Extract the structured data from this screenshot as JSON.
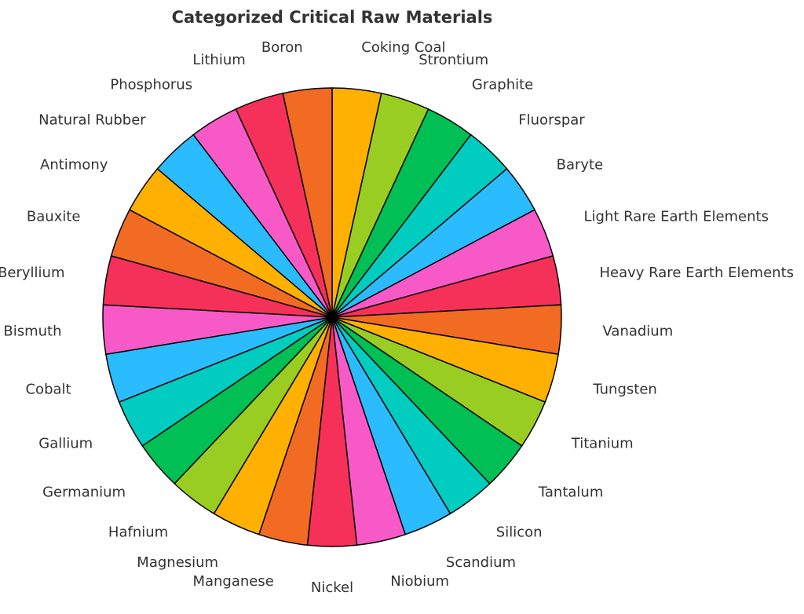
{
  "chart_data": {
    "type": "pie",
    "title": "Categorized Critical Raw Materials",
    "categories": [
      "Coking Coal",
      "Strontium",
      "Graphite",
      "Fluorspar",
      "Baryte",
      "Light Rare Earth Elements",
      "Heavy Rare Earth Elements",
      "Vanadium",
      "Tungsten",
      "Titanium",
      "Tantalum",
      "Silicon",
      "Scandium",
      "Niobium",
      "Nickel",
      "Manganese",
      "Magnesium",
      "Hafnium",
      "Germanium",
      "Gallium",
      "Cobalt",
      "Bismuth",
      "Beryllium",
      "Bauxite",
      "Antimony",
      "Natural Rubber",
      "Phosphorus",
      "Lithium",
      "Boron"
    ],
    "values": [
      1,
      1,
      1,
      1,
      1,
      1,
      1,
      1,
      1,
      1,
      1,
      1,
      1,
      1,
      1,
      1,
      1,
      1,
      1,
      1,
      1,
      1,
      1,
      1,
      1,
      1,
      1,
      1,
      1
    ],
    "colors": [
      "#FFB000",
      "#9ACD22",
      "#00BF55",
      "#00CCC0",
      "#2BBBFF",
      "#F75AC6",
      "#F5315A",
      "#F26B22",
      "#FFB000",
      "#9ACD22",
      "#00BF55",
      "#00CCC0",
      "#2BBBFF",
      "#F75AC6",
      "#F5315A",
      "#F26B22",
      "#FFB000",
      "#9ACD22",
      "#00BF55",
      "#00CCC0",
      "#2BBBFF",
      "#F75AC6",
      "#F5315A",
      "#F26B22",
      "#FFB000",
      "#2BBBFF",
      "#F75AC6",
      "#F5315A",
      "#F26B22"
    ],
    "start_angle": "12 o'clock",
    "direction": "clockwise",
    "legend": "none"
  }
}
